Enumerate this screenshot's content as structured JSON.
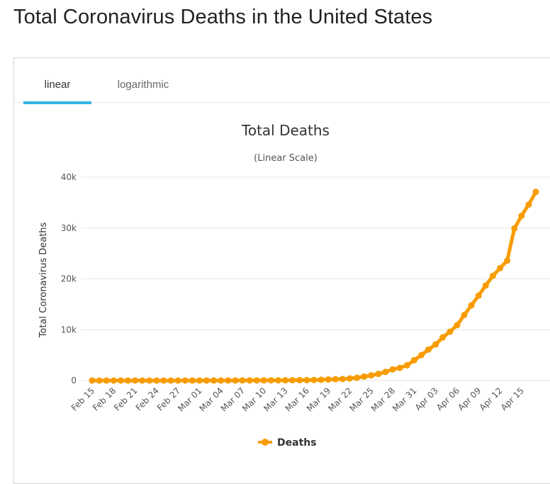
{
  "page": {
    "title": "Total Coronavirus Deaths in the United States"
  },
  "tabs": [
    {
      "label": "linear",
      "active": true
    },
    {
      "label": "logarithmic",
      "active": false
    }
  ],
  "colors": {
    "series": "#f89c00",
    "tab_active": "#33b5e5",
    "grid": "#e6e6e6"
  },
  "chart_data": {
    "type": "line",
    "title": "Total Deaths",
    "subtitle": "(Linear Scale)",
    "xlabel": "",
    "ylabel": "Total Coronavirus Deaths",
    "ylim": [
      0,
      40000
    ],
    "yticks": [
      0,
      10000,
      20000,
      30000,
      40000
    ],
    "ytick_labels": [
      "0",
      "10k",
      "20k",
      "30k",
      "40k"
    ],
    "xtick_labels": [
      "Feb 15",
      "Feb 18",
      "Feb 21",
      "Feb 24",
      "Feb 27",
      "Mar 01",
      "Mar 04",
      "Mar 07",
      "Mar 10",
      "Mar 13",
      "Mar 16",
      "Mar 19",
      "Mar 22",
      "Mar 25",
      "Mar 28",
      "Mar 31",
      "Apr 03",
      "Apr 06",
      "Apr 09",
      "Apr 12",
      "Apr 15"
    ],
    "grid": true,
    "legend": "bottom-center",
    "categories": [
      "Feb 15",
      "Feb 16",
      "Feb 17",
      "Feb 18",
      "Feb 19",
      "Feb 20",
      "Feb 21",
      "Feb 22",
      "Feb 23",
      "Feb 24",
      "Feb 25",
      "Feb 26",
      "Feb 27",
      "Feb 28",
      "Feb 29",
      "Mar 01",
      "Mar 02",
      "Mar 03",
      "Mar 04",
      "Mar 05",
      "Mar 06",
      "Mar 07",
      "Mar 08",
      "Mar 09",
      "Mar 10",
      "Mar 11",
      "Mar 12",
      "Mar 13",
      "Mar 14",
      "Mar 15",
      "Mar 16",
      "Mar 17",
      "Mar 18",
      "Mar 19",
      "Mar 20",
      "Mar 21",
      "Mar 22",
      "Mar 23",
      "Mar 24",
      "Mar 25",
      "Mar 26",
      "Mar 27",
      "Mar 28",
      "Mar 29",
      "Mar 30",
      "Mar 31",
      "Apr 01",
      "Apr 02",
      "Apr 03",
      "Apr 04",
      "Apr 05",
      "Apr 06",
      "Apr 07",
      "Apr 08",
      "Apr 09",
      "Apr 10",
      "Apr 11",
      "Apr 12",
      "Apr 13",
      "Apr 14",
      "Apr 15",
      "Apr 16",
      "Apr 17"
    ],
    "series": [
      {
        "name": "Deaths",
        "values": [
          0,
          0,
          0,
          0,
          0,
          0,
          0,
          0,
          0,
          0,
          0,
          0,
          0,
          0,
          1,
          1,
          6,
          9,
          11,
          12,
          15,
          19,
          22,
          26,
          30,
          38,
          41,
          49,
          57,
          68,
          86,
          109,
          150,
          206,
          255,
          301,
          414,
          555,
          780,
          1020,
          1300,
          1700,
          2200,
          2500,
          3000,
          4000,
          5000,
          6100,
          7100,
          8500,
          9600,
          10900,
          12900,
          14800,
          16700,
          18700,
          20600,
          22100,
          23600,
          29900,
          32400,
          34600,
          37100
        ]
      }
    ]
  }
}
